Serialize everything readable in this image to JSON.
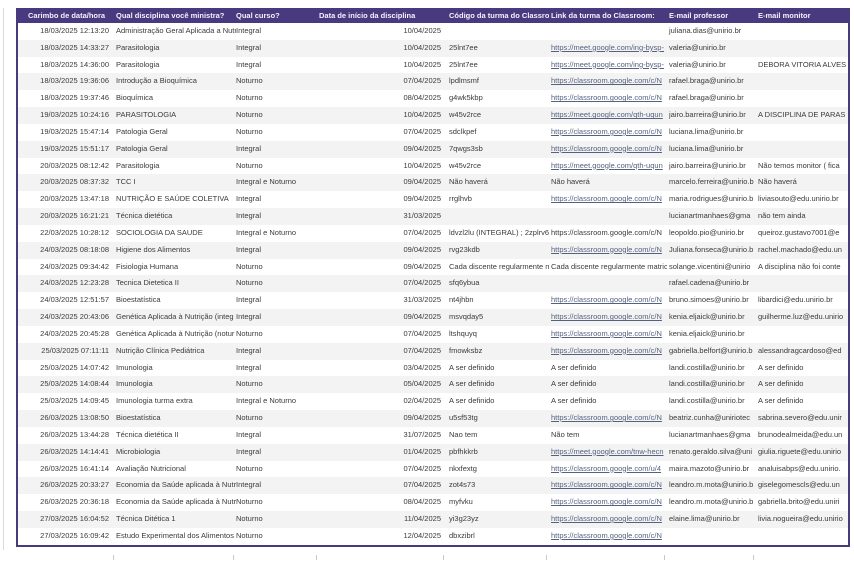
{
  "colors": {
    "header_bg": "#493a80",
    "border": "#493a80",
    "link": "#55617f",
    "text": "#3a3a3a",
    "stripe": "#f3f3f3"
  },
  "table": {
    "columns": [
      {
        "key": "timestamp",
        "label": "Carimbo de data/hora"
      },
      {
        "key": "disciplina",
        "label": "Qual disciplina você ministra?"
      },
      {
        "key": "curso",
        "label": "Qual curso?"
      },
      {
        "key": "inicio",
        "label": "Data de início da disciplina"
      },
      {
        "key": "codigo",
        "label": "Código da turma do Classroom:"
      },
      {
        "key": "link",
        "label": "Link da turma do Classroom:"
      },
      {
        "key": "professor",
        "label": "E-mail professor"
      },
      {
        "key": "monitor",
        "label": "E-mail monitor"
      }
    ],
    "rows": [
      {
        "timestamp": "18/03/2025 12:13:20",
        "disciplina": "Administração Geral Aplicada a Nutr",
        "curso": "Integral",
        "inicio": "10/04/2025",
        "codigo": "",
        "link": "",
        "link_is_url": false,
        "professor": "juliana.dias@unirio.br",
        "monitor": ""
      },
      {
        "timestamp": "18/03/2025 14:33:27",
        "disciplina": "Parasitologia",
        "curso": "Integral",
        "inicio": "10/04/2025",
        "codigo": "25lnt7ee",
        "link": "https://meet.google.com/ing-bysp-",
        "link_is_url": true,
        "professor": "valeria@unirio.br",
        "monitor": ""
      },
      {
        "timestamp": "18/03/2025 14:36:00",
        "disciplina": "Parasitologia",
        "curso": "Integral",
        "inicio": "10/04/2025",
        "codigo": "25lnt7ee",
        "link": "https://meet.google.com/ing-bysp-",
        "link_is_url": true,
        "professor": "valeria@unirio.br",
        "monitor": "DEBORA VITORIA ALVES"
      },
      {
        "timestamp": "18/03/2025 19:36:06",
        "disciplina": "Introdução a Bioquímica",
        "curso": "Noturno",
        "inicio": "07/04/2025",
        "codigo": "lpdlmsmf",
        "link": "https://classroom.google.com/c/N",
        "link_is_url": true,
        "professor": "rafael.braga@unirio.br",
        "monitor": ""
      },
      {
        "timestamp": "18/03/2025 19:37:46",
        "disciplina": "Bioquímica",
        "curso": "Noturno",
        "inicio": "08/04/2025",
        "codigo": "g4wk5kbp",
        "link": "https://classroom.google.com/c/N",
        "link_is_url": true,
        "professor": "rafael.braga@unirio.br",
        "monitor": ""
      },
      {
        "timestamp": "19/03/2025 10:24:16",
        "disciplina": "PARASITOLOGIA",
        "curso": "Noturno",
        "inicio": "10/04/2025",
        "codigo": "w45v2rce",
        "link": "https://meet.google.com/qth-uqun",
        "link_is_url": true,
        "professor": "jairo.barreira@unirio.br",
        "monitor": "A DISCIPLINA DE PARAS"
      },
      {
        "timestamp": "19/03/2025 15:47:14",
        "disciplina": "Patologia Geral",
        "curso": "Noturno",
        "inicio": "07/04/2025",
        "codigo": "sdclkpef",
        "link": "https://classroom.google.com/c/N",
        "link_is_url": true,
        "professor": "luciana.lima@unirio.br",
        "monitor": ""
      },
      {
        "timestamp": "19/03/2025 15:51:17",
        "disciplina": "Patologia Geral",
        "curso": "Integral",
        "inicio": "09/04/2025",
        "codigo": "7qwgs3sb",
        "link": "https://classroom.google.com/c/N",
        "link_is_url": true,
        "professor": "luciana.lima@unirio.br",
        "monitor": ""
      },
      {
        "timestamp": "20/03/2025 08:12:42",
        "disciplina": "Parasitologia",
        "curso": "Noturno",
        "inicio": "10/04/2025",
        "codigo": "w45v2rce",
        "link": "https://meet.google.com/qth-uqun",
        "link_is_url": true,
        "professor": "jairo.barreira@unirio.br",
        "monitor": "Não temos monitor ( fica"
      },
      {
        "timestamp": "20/03/2025 08:37:32",
        "disciplina": "TCC I",
        "curso": "Integral e Noturno",
        "inicio": "09/04/2025",
        "codigo": "Não haverá",
        "link": "Não haverá",
        "link_is_url": false,
        "professor": "marcelo.ferreira@unirio.b",
        "monitor": "Não haverá"
      },
      {
        "timestamp": "20/03/2025 13:47:18",
        "disciplina": "NUTRIÇÃO E SAÚDE COLETIVA",
        "curso": "Integral",
        "inicio": "09/04/2025",
        "codigo": "rrglhvb",
        "link": "https://classroom.google.com/c/N",
        "link_is_url": true,
        "professor": "maria.rodrigues@unirio.b",
        "monitor": "liviasouto@edu.unirio.br"
      },
      {
        "timestamp": "20/03/2025 16:21:21",
        "disciplina": "Técnica dietética",
        "curso": "Integral",
        "inicio": "31/03/2025",
        "codigo": "",
        "link": "",
        "link_is_url": false,
        "professor": "lucianartmanhaes@gma",
        "monitor": "não tem ainda"
      },
      {
        "timestamp": "22/03/2025 10:28:12",
        "disciplina": "SOCIOLOGIA DA SAUDE",
        "curso": "Integral e Noturno",
        "inicio": "07/04/2025",
        "codigo": "ldvzl2lu (INTEGRAL) ; 2zplrv6s (NOTU",
        "link": "https://classroom.google.com/c/N",
        "link_is_url": false,
        "professor": "leopoldo.pio@unirio.br",
        "monitor": "queiroz.gustavo7001@e"
      },
      {
        "timestamp": "24/03/2025 08:18:08",
        "disciplina": "Higiene dos Alimentos",
        "curso": "Integral",
        "inicio": "09/04/2025",
        "codigo": "rvg23kdb",
        "link": "https://classroom.google.com/c/N",
        "link_is_url": true,
        "professor": "Juliana.fonseca@unirio.b",
        "monitor": "rachel.machado@edu.un"
      },
      {
        "timestamp": "24/03/2025 09:34:42",
        "disciplina": "Fisiologia Humana",
        "curso": "Noturno",
        "inicio": "09/04/2025",
        "codigo": "Cada discente regularmente matricula",
        "link": "Cada discente regularmente matric",
        "link_is_url": false,
        "professor": "solange.vicentini@unirio",
        "monitor": "A disciplina não foi conte"
      },
      {
        "timestamp": "24/03/2025 12:23:28",
        "disciplina": "Tecnica Dietetica II",
        "curso": "Noturno",
        "inicio": "07/04/2025",
        "codigo": "sfq6ybua",
        "link": "",
        "link_is_url": false,
        "professor": "rafael.cadena@unirio.br",
        "monitor": ""
      },
      {
        "timestamp": "24/03/2025 12:51:57",
        "disciplina": "Bioestatística",
        "curso": "Integral",
        "inicio": "31/03/2025",
        "codigo": "nt4jhbn",
        "link": "https://classroom.google.com/c/N",
        "link_is_url": true,
        "professor": "bruno.simoes@unirio.br",
        "monitor": "libardici@edu.unirio.br"
      },
      {
        "timestamp": "24/03/2025 20:43:06",
        "disciplina": "Genética Aplicada à Nutrição (integ",
        "curso": "Integral",
        "inicio": "09/04/2025",
        "codigo": "msvqday5",
        "link": "https://classroom.google.com/c/N",
        "link_is_url": true,
        "professor": "kenia.eljaick@unirio.br",
        "monitor": "guilherme.luz@edu.unirio"
      },
      {
        "timestamp": "24/03/2025 20:45:28",
        "disciplina": "Genética Aplicada à Nutrição (notur",
        "curso": "Noturno",
        "inicio": "07/04/2025",
        "codigo": "ltshquyq",
        "link": "https://classroom.google.com/c/N",
        "link_is_url": true,
        "professor": "kenia.eljaick@unirio.br",
        "monitor": ""
      },
      {
        "timestamp": "25/03/2025 07:11:11",
        "disciplina": "Nutrição Clínica Pediátrica",
        "curso": "Integral",
        "inicio": "07/04/2025",
        "codigo": "fmowksbz",
        "link": "https://classroom.google.com/c/N",
        "link_is_url": true,
        "professor": "gabriella.belfort@unirio.b",
        "monitor": "alessandragcardoso@ed"
      },
      {
        "timestamp": "25/03/2025 14:07:42",
        "disciplina": "Imunologia",
        "curso": "Integral",
        "inicio": "03/04/2025",
        "codigo": "A ser definido",
        "link": "A ser definido",
        "link_is_url": false,
        "professor": "landi.costilla@unirio.br",
        "monitor": "A ser definido"
      },
      {
        "timestamp": "25/03/2025 14:08:44",
        "disciplina": "Imunologia",
        "curso": "Noturno",
        "inicio": "05/04/2025",
        "codigo": "A ser definido",
        "link": "A ser definido",
        "link_is_url": false,
        "professor": "landi.costilla@unirio.br",
        "monitor": "A ser definido"
      },
      {
        "timestamp": "25/03/2025 14:09:45",
        "disciplina": "Imunologia  turma extra",
        "curso": "Integral e Noturno",
        "inicio": "02/04/2025",
        "codigo": "A ser definido",
        "link": "A ser definido",
        "link_is_url": false,
        "professor": "landi.costilla@unirio.br",
        "monitor": "A ser definido"
      },
      {
        "timestamp": "26/03/2025 13:08:50",
        "disciplina": "Bioestatística",
        "curso": "Noturno",
        "inicio": "09/04/2025",
        "codigo": "u5sf53tg",
        "link": "https://classroom.google.com/c/N",
        "link_is_url": true,
        "professor": "beatriz.cunha@uniriotec",
        "monitor": "sabrina.severo@edu.unir"
      },
      {
        "timestamp": "26/03/2025 13:44:28",
        "disciplina": "Técnica dietética II",
        "curso": "Integral",
        "inicio": "31/07/2025",
        "codigo": "Nao tem",
        "link": "Não tem",
        "link_is_url": false,
        "professor": "lucianartmanhaes@gma",
        "monitor": "brunodealmeida@edu.un"
      },
      {
        "timestamp": "26/03/2025 14:14:41",
        "disciplina": "Microbiologia",
        "curso": "Integral",
        "inicio": "01/04/2025",
        "codigo": "pbfhkkrb",
        "link": "https://meet.google.com/tnw-hecn",
        "link_is_url": true,
        "professor": "renato.geraldo.silva@uni",
        "monitor": "giulia.riguete@edu.unirio"
      },
      {
        "timestamp": "26/03/2025 16:41:14",
        "disciplina": "Avaliação Nutricional",
        "curso": "Noturno",
        "inicio": "07/04/2025",
        "codigo": "nkxfextg",
        "link": "https://classroom.google.com/u/4",
        "link_is_url": true,
        "professor": "maira.mazoto@unirio.br",
        "monitor": "analuisabps@edu.unirio."
      },
      {
        "timestamp": "26/03/2025 20:33:27",
        "disciplina": "Economia da Saúde aplicada à Nutr",
        "curso": "Integral",
        "inicio": "07/04/2025",
        "codigo": "zot4s73",
        "link": "https://classroom.google.com/c/N",
        "link_is_url": true,
        "professor": "leandro.m.mota@unirio.b",
        "monitor": "giselegomescls@edu.un"
      },
      {
        "timestamp": "26/03/2025 20:36:18",
        "disciplina": "Economia da Saúde aplicada à Nutr",
        "curso": "Noturno",
        "inicio": "08/04/2025",
        "codigo": "myfvku",
        "link": "https://classroom.google.com/c/N",
        "link_is_url": true,
        "professor": "leandro.m.mota@unirio.b",
        "monitor": "gabriella.brito@edu.uniri"
      },
      {
        "timestamp": "27/03/2025 16:04:52",
        "disciplina": "Técnica Ditética 1",
        "curso": "Noturno",
        "inicio": "11/04/2025",
        "codigo": "yi3g23yz",
        "link": "https://classroom.google.com/c/N",
        "link_is_url": true,
        "professor": "elaine.lima@unirio.br",
        "monitor": "livia.nogueira@edu.unirio"
      },
      {
        "timestamp": "27/03/2025 16:09:42",
        "disciplina": "Estudo Experimental dos Alimentos",
        "curso": "Noturno",
        "inicio": "12/04/2025",
        "codigo": "dbxzibrl",
        "link": "https://classroom.google.com/c/N",
        "link_is_url": true,
        "professor": "",
        "monitor": ""
      }
    ]
  }
}
